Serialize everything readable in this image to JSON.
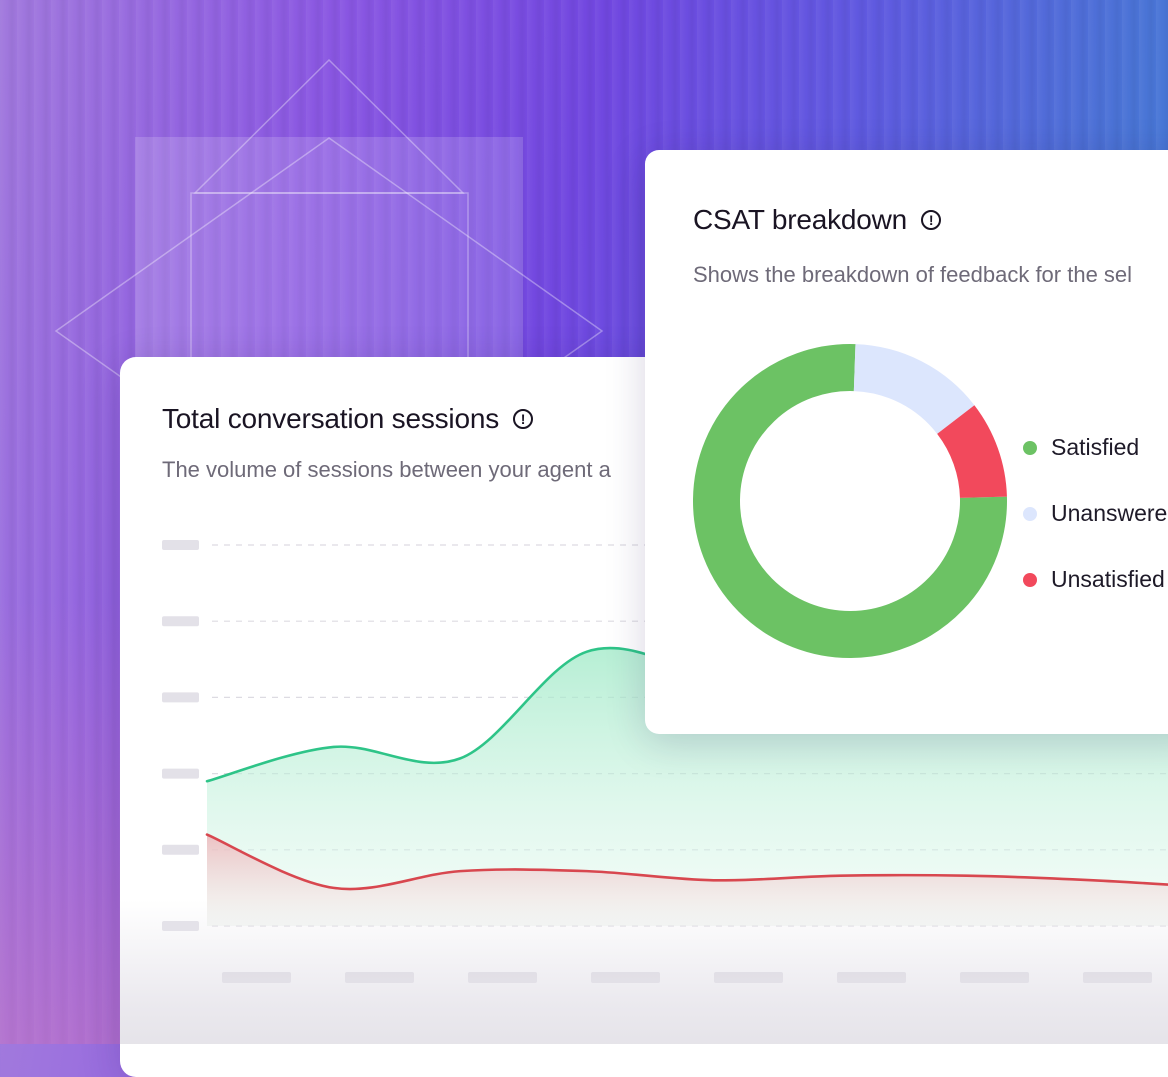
{
  "sessions_card": {
    "title": "Total conversation sessions",
    "subtitle": "The volume of sessions between your agent a"
  },
  "csat_card": {
    "title": "CSAT breakdown",
    "subtitle": "Shows the breakdown of feedback for the sel"
  },
  "info_icon_glyph": "!",
  "colors": {
    "satisfied": "#6cc264",
    "unanswered": "#dce6fd",
    "unsatisfied": "#f2495c",
    "sessions_line": "#2ec488",
    "sessions_fill": "#bff0dc",
    "secondary_line": "#d8474f",
    "secondary_fill": "#f4c9cc",
    "placeholder": "#e3e1e8"
  },
  "chart_data": [
    {
      "type": "area",
      "title": "Total conversation sessions",
      "subtitle": "The volume of sessions between your agent a",
      "grid": true,
      "ylim": [
        0,
        5
      ],
      "x": [
        0,
        1,
        2,
        3,
        4,
        5,
        6,
        7,
        8
      ],
      "series": [
        {
          "values": [
            1.9,
            2.35,
            2.2,
            3.6,
            3.3,
            3.1,
            2.9,
            2.8,
            2.7
          ]
        },
        {
          "values": [
            1.2,
            0.5,
            0.72,
            0.72,
            0.6,
            0.66,
            0.66,
            0.6,
            0.5
          ]
        }
      ]
    },
    {
      "type": "pie",
      "title": "CSAT breakdown",
      "subtitle": "Shows the breakdown of feedback for the sel",
      "legend": "right",
      "categories": [
        "Satisfied",
        "Unanswered",
        "Unsatisfied"
      ],
      "values": [
        76,
        14,
        10
      ]
    }
  ]
}
